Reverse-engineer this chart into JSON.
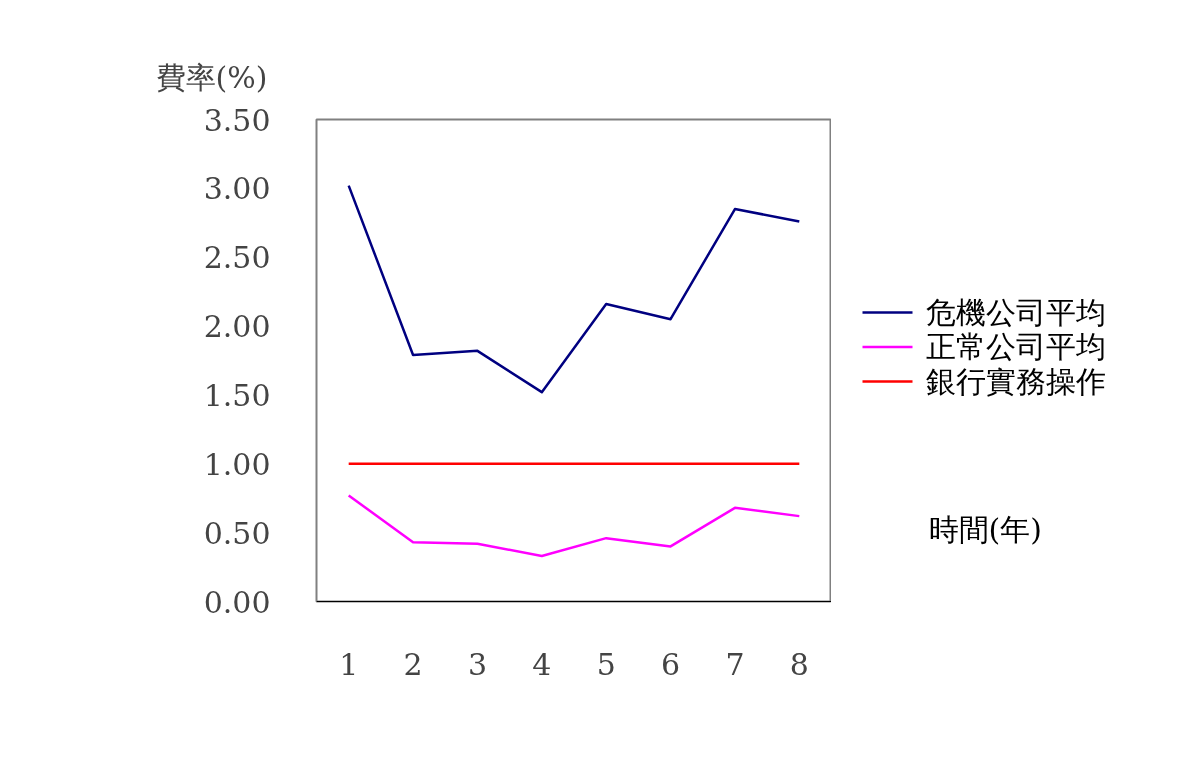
{
  "chart_data": {
    "type": "line",
    "ylabel": "費率(%)",
    "xlabel": "時間(年)",
    "categories": [
      "1",
      "2",
      "3",
      "4",
      "5",
      "6",
      "7",
      "8"
    ],
    "series": [
      {
        "name": "危機公司平均",
        "color": "#000080",
        "values": [
          3.02,
          1.79,
          1.82,
          1.52,
          2.16,
          2.05,
          2.85,
          2.76
        ]
      },
      {
        "name": "正常公司平均",
        "color": "#ff00ff",
        "values": [
          0.77,
          0.43,
          0.42,
          0.33,
          0.46,
          0.4,
          0.68,
          0.62
        ]
      },
      {
        "name": "銀行實務操作",
        "color": "#ff0000",
        "values": [
          1.0,
          1.0,
          1.0,
          1.0,
          1.0,
          1.0,
          1.0,
          1.0
        ]
      }
    ],
    "ylim": [
      0,
      3.5
    ],
    "yticks": [
      {
        "value": 0,
        "label": "0.00"
      },
      {
        "value": 0.5,
        "label": "0.50"
      },
      {
        "value": 1,
        "label": "1.00"
      },
      {
        "value": 1.5,
        "label": "1.50"
      },
      {
        "value": 2,
        "label": "2.00"
      },
      {
        "value": 2.5,
        "label": "2.50"
      },
      {
        "value": 3,
        "label": "3.00"
      },
      {
        "value": 3.5,
        "label": "3.50"
      }
    ],
    "grid": false,
    "legend": "right",
    "marker": "none",
    "line_style": "solid"
  }
}
